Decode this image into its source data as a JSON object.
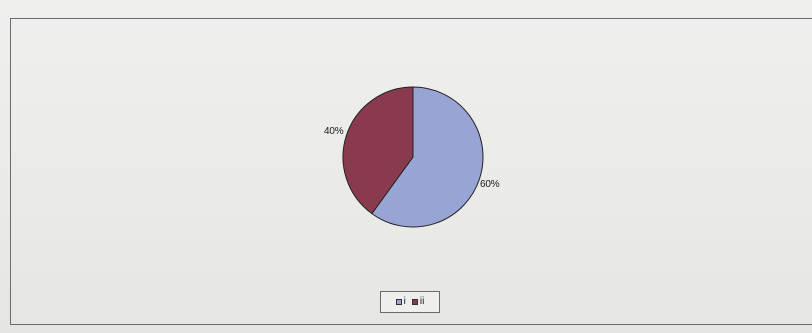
{
  "chart_data": {
    "type": "pie",
    "slices": [
      {
        "label": "i",
        "value": 60,
        "display": "60%",
        "color": "#98a4d4"
      },
      {
        "label": "ii",
        "value": 40,
        "display": "40%",
        "color": "#8a3a4e"
      }
    ],
    "legend_placement": "bottom",
    "legend": [
      "i",
      "ii"
    ]
  }
}
